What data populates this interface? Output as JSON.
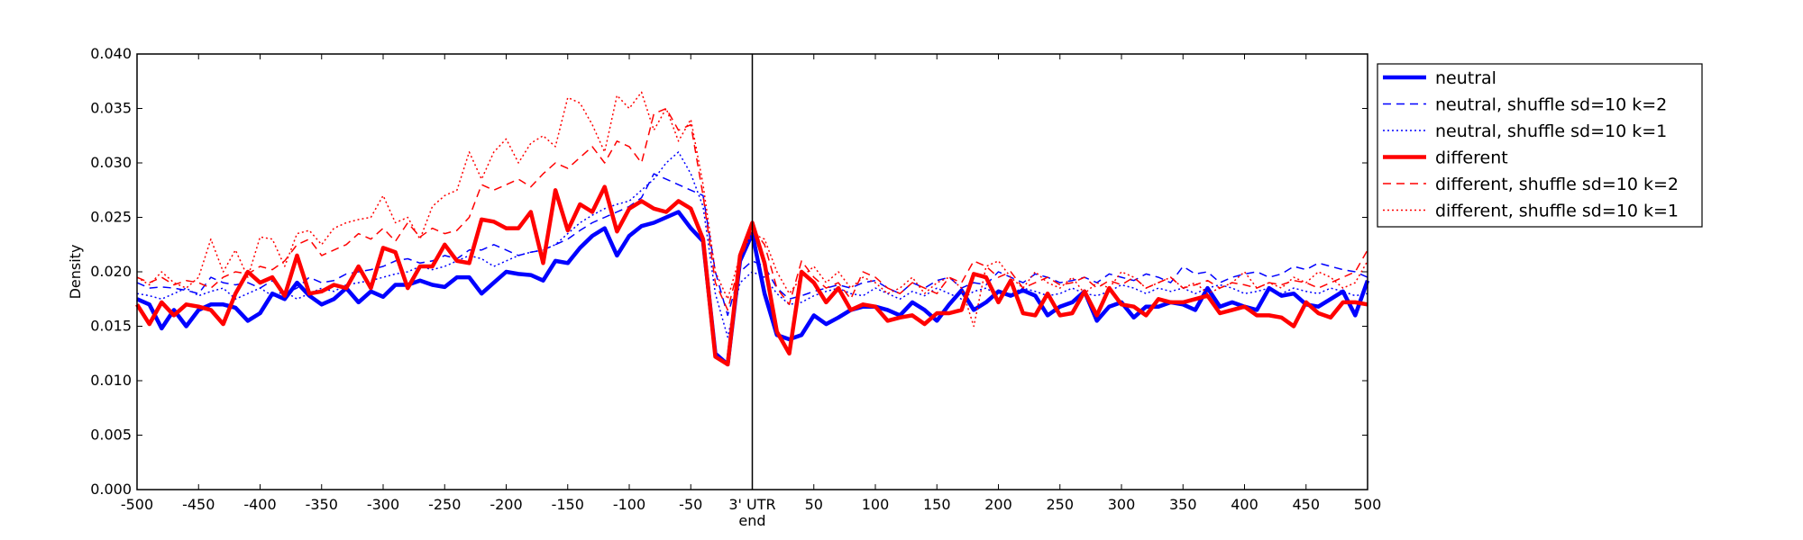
{
  "chart_data": {
    "type": "line",
    "xlabel": "",
    "ylabel": "Density",
    "xlim": [
      -500,
      500
    ],
    "ylim": [
      0,
      0.04
    ],
    "x_ticks": [
      -500,
      -450,
      -400,
      -350,
      -300,
      -250,
      -200,
      -150,
      -100,
      -50,
      0,
      50,
      100,
      150,
      200,
      250,
      300,
      350,
      400,
      450,
      500
    ],
    "x_tick_labels": [
      "-500",
      "-450",
      "-400",
      "-350",
      "-300",
      "-250",
      "-200",
      "-150",
      "-100",
      "-50",
      "3' UTR",
      "50",
      "100",
      "150",
      "200",
      "250",
      "300",
      "350",
      "400",
      "450",
      "500"
    ],
    "x_tick_sublabel": {
      "x": 0,
      "text": "end"
    },
    "y_ticks": [
      0,
      0.005,
      0.01,
      0.015,
      0.02,
      0.025,
      0.03,
      0.035,
      0.04
    ],
    "y_tick_labels": [
      "0.000",
      "0.005",
      "0.010",
      "0.015",
      "0.020",
      "0.025",
      "0.030",
      "0.035",
      "0.040"
    ],
    "vline_x": 0,
    "legend_position": "outside-right-top",
    "x": [
      -500,
      -490,
      -480,
      -470,
      -460,
      -450,
      -440,
      -430,
      -420,
      -410,
      -400,
      -390,
      -380,
      -370,
      -360,
      -350,
      -340,
      -330,
      -320,
      -310,
      -300,
      -290,
      -280,
      -270,
      -260,
      -250,
      -240,
      -230,
      -220,
      -210,
      -200,
      -190,
      -180,
      -170,
      -160,
      -150,
      -140,
      -130,
      -120,
      -110,
      -100,
      -90,
      -80,
      -70,
      -60,
      -50,
      -40,
      -30,
      -20,
      -10,
      0,
      10,
      20,
      30,
      40,
      50,
      60,
      70,
      80,
      90,
      100,
      110,
      120,
      130,
      140,
      150,
      160,
      170,
      180,
      190,
      200,
      210,
      220,
      230,
      240,
      250,
      260,
      270,
      280,
      290,
      300,
      310,
      320,
      330,
      340,
      350,
      360,
      370,
      380,
      390,
      400,
      410,
      420,
      430,
      440,
      450,
      460,
      470,
      480,
      490,
      500
    ],
    "series": [
      {
        "name": "neutral",
        "color": "#0000ff",
        "style": "solid",
        "width": 4.5,
        "values": [
          0.0175,
          0.017,
          0.0148,
          0.0165,
          0.015,
          0.0165,
          0.017,
          0.017,
          0.0167,
          0.0155,
          0.0162,
          0.018,
          0.0175,
          0.019,
          0.0178,
          0.017,
          0.0175,
          0.0185,
          0.0172,
          0.0182,
          0.0177,
          0.0188,
          0.0188,
          0.0192,
          0.0188,
          0.0186,
          0.0195,
          0.0195,
          0.018,
          0.019,
          0.02,
          0.0198,
          0.0197,
          0.0192,
          0.021,
          0.0208,
          0.0222,
          0.0233,
          0.024,
          0.0215,
          0.0233,
          0.0242,
          0.0245,
          0.025,
          0.0255,
          0.024,
          0.0228,
          0.0125,
          0.0115,
          0.021,
          0.0235,
          0.018,
          0.0142,
          0.0138,
          0.0142,
          0.016,
          0.0152,
          0.0158,
          0.0165,
          0.0168,
          0.0168,
          0.0165,
          0.016,
          0.0172,
          0.0165,
          0.0155,
          0.017,
          0.0183,
          0.0165,
          0.0172,
          0.0182,
          0.0178,
          0.0183,
          0.0178,
          0.016,
          0.0168,
          0.0172,
          0.0182,
          0.0155,
          0.0168,
          0.0172,
          0.0158,
          0.0168,
          0.0168,
          0.0172,
          0.017,
          0.0165,
          0.0185,
          0.0168,
          0.0172,
          0.0168,
          0.0165,
          0.0185,
          0.0178,
          0.018,
          0.017,
          0.0168,
          0.0175,
          0.0182,
          0.016,
          0.0192
        ]
      },
      {
        "name": "neutral, shuffle sd=10 k=2",
        "color": "#0000ff",
        "style": "dashed",
        "width": 1.5,
        "values": [
          0.019,
          0.0185,
          0.0186,
          0.0185,
          0.0183,
          0.018,
          0.0195,
          0.019,
          0.0188,
          0.019,
          0.0185,
          0.0192,
          0.018,
          0.0185,
          0.0195,
          0.019,
          0.0192,
          0.0198,
          0.02,
          0.0202,
          0.0205,
          0.021,
          0.0212,
          0.0208,
          0.021,
          0.0215,
          0.0212,
          0.022,
          0.022,
          0.0225,
          0.022,
          0.0215,
          0.0218,
          0.022,
          0.0225,
          0.023,
          0.0238,
          0.0245,
          0.025,
          0.0255,
          0.026,
          0.0268,
          0.029,
          0.0285,
          0.028,
          0.0275,
          0.027,
          0.02,
          0.016,
          0.02,
          0.021,
          0.0205,
          0.0185,
          0.0175,
          0.0178,
          0.0182,
          0.0185,
          0.0188,
          0.0185,
          0.019,
          0.0192,
          0.0185,
          0.018,
          0.019,
          0.0185,
          0.0192,
          0.0195,
          0.0185,
          0.019,
          0.0188,
          0.02,
          0.0195,
          0.019,
          0.0198,
          0.0195,
          0.019,
          0.0192,
          0.0195,
          0.019,
          0.0198,
          0.0195,
          0.0192,
          0.0198,
          0.0195,
          0.019,
          0.0205,
          0.0198,
          0.02,
          0.019,
          0.0195,
          0.0198,
          0.02,
          0.0195,
          0.0198,
          0.0205,
          0.0202,
          0.0208,
          0.0205,
          0.0202,
          0.02,
          0.0195
        ]
      },
      {
        "name": "neutral, shuffle sd=10 k=1",
        "color": "#0000ff",
        "style": "dotted",
        "width": 1.5,
        "values": [
          0.018,
          0.0178,
          0.0175,
          0.018,
          0.0185,
          0.0178,
          0.0182,
          0.0185,
          0.0175,
          0.018,
          0.0185,
          0.0178,
          0.0182,
          0.0175,
          0.018,
          0.0185,
          0.0182,
          0.0188,
          0.019,
          0.0192,
          0.0195,
          0.0198,
          0.02,
          0.0205,
          0.0202,
          0.0205,
          0.021,
          0.0215,
          0.0212,
          0.0205,
          0.021,
          0.0215,
          0.0218,
          0.022,
          0.0225,
          0.0235,
          0.0245,
          0.0252,
          0.0258,
          0.0262,
          0.0265,
          0.0275,
          0.0285,
          0.03,
          0.031,
          0.029,
          0.026,
          0.018,
          0.014,
          0.019,
          0.02,
          0.0195,
          0.018,
          0.017,
          0.0172,
          0.0178,
          0.0182,
          0.0185,
          0.018,
          0.0178,
          0.0185,
          0.018,
          0.0175,
          0.0182,
          0.0178,
          0.0185,
          0.018,
          0.0175,
          0.0182,
          0.0185,
          0.0178,
          0.018,
          0.0185,
          0.0182,
          0.0178,
          0.018,
          0.0185,
          0.018,
          0.0178,
          0.0182,
          0.0188,
          0.0185,
          0.018,
          0.0185,
          0.0182,
          0.0185,
          0.018,
          0.0185,
          0.0188,
          0.0185,
          0.018,
          0.0182,
          0.0185,
          0.018,
          0.0185,
          0.0182,
          0.018,
          0.0185,
          0.0182,
          0.0178,
          0.018
        ]
      },
      {
        "name": "different",
        "color": "#ff0000",
        "style": "solid",
        "width": 4.5,
        "values": [
          0.017,
          0.0152,
          0.0172,
          0.016,
          0.017,
          0.0168,
          0.0165,
          0.0152,
          0.018,
          0.02,
          0.019,
          0.0195,
          0.0178,
          0.0215,
          0.018,
          0.0182,
          0.0188,
          0.0185,
          0.0205,
          0.0185,
          0.0222,
          0.0218,
          0.0185,
          0.0205,
          0.0205,
          0.0225,
          0.021,
          0.0208,
          0.0248,
          0.0246,
          0.024,
          0.024,
          0.0255,
          0.0208,
          0.0275,
          0.0238,
          0.0262,
          0.0255,
          0.0278,
          0.0237,
          0.0258,
          0.0265,
          0.0258,
          0.0255,
          0.0265,
          0.0258,
          0.023,
          0.0122,
          0.0115,
          0.0215,
          0.0245,
          0.0208,
          0.0145,
          0.0125,
          0.02,
          0.019,
          0.0172,
          0.0185,
          0.0165,
          0.017,
          0.0168,
          0.0155,
          0.0158,
          0.016,
          0.0152,
          0.0162,
          0.0162,
          0.0165,
          0.0198,
          0.0195,
          0.0172,
          0.0192,
          0.0162,
          0.016,
          0.018,
          0.016,
          0.0162,
          0.0182,
          0.016,
          0.0185,
          0.017,
          0.0168,
          0.016,
          0.0175,
          0.0172,
          0.0172,
          0.0175,
          0.0178,
          0.0162,
          0.0165,
          0.0168,
          0.016,
          0.016,
          0.0158,
          0.015,
          0.0172,
          0.0162,
          0.0158,
          0.0172,
          0.0172,
          0.017
        ]
      },
      {
        "name": "different, shuffle sd=10 k=2",
        "color": "#ff0000",
        "style": "dashed",
        "width": 1.5,
        "values": [
          0.0195,
          0.019,
          0.0195,
          0.0188,
          0.0192,
          0.019,
          0.0185,
          0.0195,
          0.02,
          0.0198,
          0.0205,
          0.0202,
          0.021,
          0.0225,
          0.023,
          0.0215,
          0.022,
          0.0225,
          0.0235,
          0.023,
          0.024,
          0.0228,
          0.0245,
          0.0232,
          0.024,
          0.0235,
          0.0238,
          0.025,
          0.028,
          0.0275,
          0.028,
          0.0285,
          0.0278,
          0.029,
          0.03,
          0.0295,
          0.0305,
          0.0315,
          0.03,
          0.032,
          0.0315,
          0.03,
          0.0345,
          0.035,
          0.033,
          0.0335,
          0.027,
          0.019,
          0.0165,
          0.021,
          0.024,
          0.0225,
          0.0185,
          0.017,
          0.021,
          0.0195,
          0.0185,
          0.019,
          0.0175,
          0.02,
          0.0195,
          0.0185,
          0.018,
          0.019,
          0.0185,
          0.018,
          0.0195,
          0.019,
          0.021,
          0.0205,
          0.0195,
          0.02,
          0.0185,
          0.019,
          0.0195,
          0.0188,
          0.019,
          0.0195,
          0.0185,
          0.0192,
          0.0188,
          0.0195,
          0.0185,
          0.019,
          0.0195,
          0.0185,
          0.0188,
          0.0192,
          0.0185,
          0.019,
          0.0188,
          0.0185,
          0.019,
          0.0188,
          0.0192,
          0.019,
          0.0185,
          0.019,
          0.0195,
          0.02,
          0.022
        ]
      },
      {
        "name": "different, shuffle sd=10 k=1",
        "color": "#ff0000",
        "style": "dotted",
        "width": 1.5,
        "values": [
          0.0195,
          0.0188,
          0.02,
          0.019,
          0.0185,
          0.0195,
          0.023,
          0.02,
          0.022,
          0.0195,
          0.0232,
          0.023,
          0.0205,
          0.0235,
          0.0238,
          0.0225,
          0.024,
          0.0245,
          0.0248,
          0.025,
          0.027,
          0.0245,
          0.025,
          0.023,
          0.026,
          0.027,
          0.0275,
          0.031,
          0.0285,
          0.031,
          0.0322,
          0.03,
          0.0318,
          0.0325,
          0.0315,
          0.036,
          0.0355,
          0.0335,
          0.031,
          0.0362,
          0.035,
          0.0365,
          0.033,
          0.035,
          0.032,
          0.034,
          0.028,
          0.02,
          0.0175,
          0.0215,
          0.0235,
          0.023,
          0.02,
          0.018,
          0.0195,
          0.0205,
          0.019,
          0.02,
          0.0185,
          0.0195,
          0.019,
          0.018,
          0.0185,
          0.0195,
          0.018,
          0.019,
          0.0195,
          0.0185,
          0.015,
          0.0205,
          0.021,
          0.0195,
          0.0185,
          0.02,
          0.019,
          0.0185,
          0.0195,
          0.018,
          0.019,
          0.0185,
          0.02,
          0.0195,
          0.0185,
          0.019,
          0.0195,
          0.0185,
          0.019,
          0.018,
          0.0185,
          0.019,
          0.02,
          0.0185,
          0.019,
          0.0185,
          0.0195,
          0.019,
          0.02,
          0.0195,
          0.0185,
          0.019,
          0.021
        ]
      }
    ]
  }
}
